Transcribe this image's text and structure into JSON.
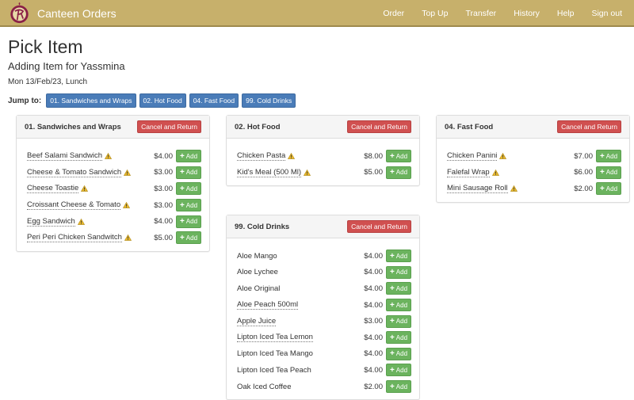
{
  "navbar": {
    "brand": "Canteen Orders",
    "links": [
      "Order",
      "Top Up",
      "Transfer",
      "History",
      "Help",
      "Sign out"
    ],
    "color": "#c7b06b"
  },
  "header": {
    "title": "Pick Item",
    "subtitle": "Adding Item for Yassmina",
    "date": "Mon 13/Feb/23, Lunch"
  },
  "jump": {
    "label": "Jump to:",
    "links": [
      "01. Sandwiches and Wraps",
      "02. Hot Food",
      "04. Fast Food",
      "99. Cold Drinks"
    ]
  },
  "common": {
    "cancel_label": "Cancel and Return",
    "add_label": "Add"
  },
  "panels": [
    {
      "title": "01. Sandwiches and Wraps",
      "items": [
        {
          "name": "Beef Salami Sandwich",
          "price": "$4.00",
          "warn": true
        },
        {
          "name": "Cheese & Tomato Sandwich",
          "price": "$3.00",
          "warn": true
        },
        {
          "name": "Cheese Toastie",
          "price": "$3.00",
          "warn": true
        },
        {
          "name": "Croissant Cheese & Tomato",
          "price": "$3.00",
          "warn": true
        },
        {
          "name": "Egg Sandwich",
          "price": "$4.00",
          "warn": true
        },
        {
          "name": "Peri Peri Chicken Sandwitch",
          "price": "$5.00",
          "warn": true
        }
      ]
    },
    {
      "title": "02. Hot Food",
      "items": [
        {
          "name": "Chicken Pasta",
          "price": "$8.00",
          "warn": true
        },
        {
          "name": "Kid's Meal (500 Ml)",
          "price": "$5.00",
          "warn": true
        }
      ]
    },
    {
      "title": "04. Fast Food",
      "items": [
        {
          "name": "Chicken Panini",
          "price": "$7.00",
          "warn": true
        },
        {
          "name": "Falefal Wrap",
          "price": "$6.00",
          "warn": true
        },
        {
          "name": "Mini Sausage Roll",
          "price": "$2.00",
          "warn": true
        }
      ]
    },
    {
      "title": "99. Cold Drinks",
      "items": [
        {
          "name": "Aloe Mango",
          "price": "$4.00",
          "warn": false
        },
        {
          "name": "Aloe Lychee",
          "price": "$4.00",
          "warn": false
        },
        {
          "name": "Aloe Original",
          "price": "$4.00",
          "warn": false
        },
        {
          "name": "Aloe Peach 500ml",
          "price": "$4.00",
          "warn": false,
          "dotted": true
        },
        {
          "name": "Apple Juice",
          "price": "$3.00",
          "warn": false,
          "dotted": true
        },
        {
          "name": "Lipton Iced Tea Lemon",
          "price": "$4.00",
          "warn": false,
          "dotted": true
        },
        {
          "name": "Lipton Iced Tea Mango",
          "price": "$4.00",
          "warn": false
        },
        {
          "name": "Lipton Iced Tea Peach",
          "price": "$4.00",
          "warn": false
        },
        {
          "name": "Oak Iced Coffee",
          "price": "$2.00",
          "warn": false
        }
      ]
    }
  ]
}
